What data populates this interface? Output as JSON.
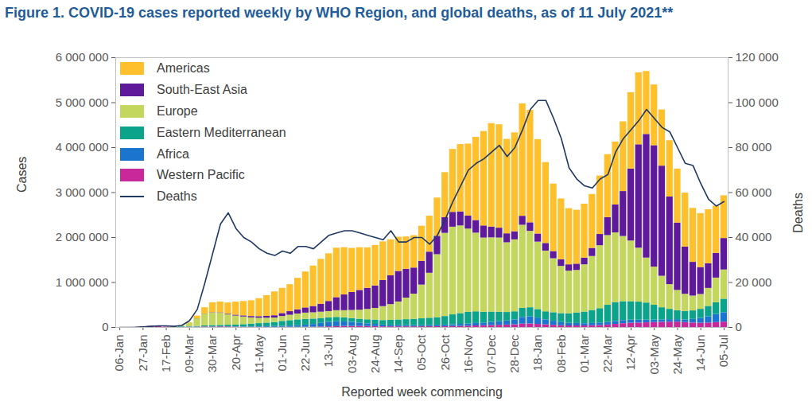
{
  "chart_data": {
    "type": "bar",
    "title": "Figure 1. COVID-19 cases reported weekly by WHO Region, and global deaths, as of 11 July 2021**",
    "xlabel": "Reported week commencing",
    "ylabel": "Cases",
    "y2label": "Deaths",
    "stacked": true,
    "grid": false,
    "legend": "top-left",
    "categories": [
      "06-Jan",
      null,
      null,
      "27-Jan",
      null,
      null,
      "17-Feb",
      null,
      null,
      "09-Mar",
      null,
      null,
      "30-Mar",
      null,
      null,
      "20-Apr",
      null,
      null,
      "11-May",
      null,
      null,
      "01-Jun",
      null,
      null,
      "22-Jun",
      null,
      null,
      "13-Jul",
      null,
      null,
      "03-Aug",
      null,
      null,
      "24-Aug",
      null,
      null,
      "14-Sep",
      null,
      null,
      "05-Oct",
      null,
      null,
      "26-Oct",
      null,
      null,
      "16-Nov",
      null,
      null,
      "07-Dec",
      null,
      null,
      "28-Dec",
      null,
      null,
      "18-Jan",
      null,
      null,
      "08-Feb",
      null,
      null,
      "01-Mar",
      null,
      null,
      "22-Mar",
      null,
      null,
      "12-Apr",
      null,
      null,
      "03-May",
      null,
      null,
      "24-May",
      null,
      null,
      "14-Jun",
      null,
      null,
      "05-Jul"
    ],
    "ylim": [
      0,
      6000000
    ],
    "yticks": [
      0,
      {
        "value": 1000000,
        "label": "1 000 000"
      },
      {
        "value": 2000000,
        "label": "2 000 000"
      },
      {
        "value": 3000000,
        "label": "3 000 000"
      },
      {
        "value": 4000000,
        "label": "4 000 000"
      },
      {
        "value": 5000000,
        "label": "5 000 000"
      },
      {
        "value": 6000000,
        "label": "6 000 000"
      }
    ],
    "y2lim": [
      0,
      120000
    ],
    "y2ticks": [
      0,
      {
        "value": 20000,
        "label": "20 000"
      },
      {
        "value": 40000,
        "label": "40 000"
      },
      {
        "value": 60000,
        "label": "60 000"
      },
      {
        "value": 80000,
        "label": "80 000"
      },
      {
        "value": 100000,
        "label": "100 000"
      },
      {
        "value": 120000,
        "label": "120 000"
      }
    ],
    "series": [
      {
        "name": "Americas",
        "type": "bar",
        "color": "#FFC02D",
        "values": [
          0,
          0,
          0,
          0,
          0,
          0,
          0,
          0,
          2000,
          15000,
          60000,
          140000,
          220000,
          240000,
          250000,
          290000,
          320000,
          350000,
          400000,
          460000,
          530000,
          560000,
          600000,
          700000,
          800000,
          900000,
          1000000,
          1060000,
          1100000,
          1050000,
          980000,
          950000,
          900000,
          900000,
          860000,
          800000,
          760000,
          720000,
          720000,
          780000,
          800000,
          850000,
          1000000,
          1400000,
          1500000,
          1600000,
          1850000,
          2100000,
          2300000,
          2300000,
          2100000,
          2200000,
          2500000,
          2500000,
          2100000,
          1800000,
          1500000,
          1350000,
          1250000,
          1200000,
          1200000,
          1200000,
          1300000,
          1400000,
          1400000,
          1550000,
          1700000,
          1600000,
          1400000,
          1350000,
          1250000,
          1250000,
          1200000,
          1200000,
          1200000,
          1200000,
          1200000,
          1050000,
          950000
        ]
      },
      {
        "name": "South-East Asia",
        "type": "bar",
        "color": "#5E1A9B",
        "values": [
          0,
          0,
          0,
          0,
          0,
          0,
          0,
          0,
          0,
          500,
          2000,
          3000,
          7000,
          10000,
          15000,
          20000,
          25000,
          30000,
          35000,
          40000,
          50000,
          65000,
          80000,
          95000,
          115000,
          140000,
          175000,
          225000,
          290000,
          350000,
          400000,
          440000,
          470000,
          500000,
          580000,
          640000,
          680000,
          640000,
          580000,
          530000,
          470000,
          410000,
          350000,
          330000,
          310000,
          290000,
          280000,
          270000,
          240000,
          220000,
          200000,
          180000,
          200000,
          190000,
          180000,
          170000,
          160000,
          150000,
          140000,
          140000,
          150000,
          180000,
          250000,
          400000,
          620000,
          1000000,
          1600000,
          2300000,
          2750000,
          2700000,
          2450000,
          1950000,
          1500000,
          1050000,
          750000,
          600000,
          550000,
          550000,
          700000
        ]
      },
      {
        "name": "Europe",
        "type": "bar",
        "color": "#C3D65E",
        "values": [
          0,
          0,
          0,
          0,
          0,
          0,
          0,
          10000,
          20000,
          75000,
          170000,
          260000,
          280000,
          270000,
          230000,
          200000,
          170000,
          140000,
          120000,
          110000,
          100000,
          110000,
          120000,
          130000,
          140000,
          140000,
          140000,
          140000,
          150000,
          160000,
          180000,
          200000,
          230000,
          260000,
          310000,
          350000,
          400000,
          480000,
          560000,
          750000,
          1000000,
          1400000,
          1850000,
          1950000,
          1950000,
          1850000,
          1750000,
          1650000,
          1650000,
          1650000,
          1550000,
          1600000,
          1850000,
          1700000,
          1500000,
          1350000,
          1200000,
          1050000,
          950000,
          950000,
          1050000,
          1200000,
          1400000,
          1550000,
          1550000,
          1450000,
          1350000,
          1200000,
          1000000,
          850000,
          700000,
          550000,
          450000,
          380000,
          330000,
          330000,
          400000,
          550000,
          650000
        ]
      },
      {
        "name": "Eastern Mediterranean",
        "type": "bar",
        "color": "#0BA48A",
        "values": [
          0,
          0,
          0,
          0,
          0,
          0,
          0,
          5000,
          12000,
          10000,
          15000,
          25000,
          30000,
          30000,
          35000,
          40000,
          50000,
          60000,
          70000,
          80000,
          90000,
          110000,
          120000,
          130000,
          130000,
          120000,
          110000,
          100000,
          95000,
          90000,
          85000,
          85000,
          90000,
          95000,
          100000,
          110000,
          120000,
          130000,
          140000,
          150000,
          160000,
          170000,
          190000,
          220000,
          240000,
          260000,
          260000,
          240000,
          230000,
          210000,
          190000,
          180000,
          200000,
          200000,
          190000,
          180000,
          190000,
          200000,
          210000,
          230000,
          260000,
          290000,
          320000,
          380000,
          420000,
          420000,
          410000,
          400000,
          380000,
          330000,
          270000,
          230000,
          200000,
          190000,
          190000,
          200000,
          230000,
          260000,
          300000
        ]
      },
      {
        "name": "Africa",
        "type": "bar",
        "color": "#1B75CE",
        "values": [
          0,
          0,
          0,
          0,
          0,
          0,
          0,
          0,
          0,
          100,
          1000,
          2000,
          4000,
          5000,
          6000,
          7000,
          8000,
          10000,
          12000,
          15000,
          18000,
          22000,
          28000,
          35000,
          45000,
          60000,
          80000,
          100000,
          110000,
          100000,
          90000,
          75000,
          60000,
          50000,
          40000,
          35000,
          33000,
          30000,
          28000,
          28000,
          30000,
          32000,
          35000,
          40000,
          45000,
          50000,
          55000,
          60000,
          70000,
          80000,
          90000,
          110000,
          150000,
          160000,
          140000,
          110000,
          90000,
          70000,
          60000,
          55000,
          50000,
          50000,
          55000,
          60000,
          65000,
          70000,
          70000,
          65000,
          60000,
          55000,
          55000,
          55000,
          55000,
          60000,
          80000,
          110000,
          140000,
          180000,
          210000
        ]
      },
      {
        "name": "Western Pacific",
        "type": "bar",
        "color": "#C8289A",
        "values": [
          0,
          50,
          2000,
          12000,
          25000,
          30000,
          10000,
          5000,
          3000,
          5000,
          7000,
          10000,
          10000,
          12000,
          10000,
          8000,
          6000,
          5000,
          5000,
          4000,
          4000,
          4000,
          5000,
          5000,
          6000,
          8000,
          12000,
          15000,
          20000,
          25000,
          25000,
          25000,
          22000,
          20000,
          15000,
          15000,
          15000,
          15000,
          15000,
          16000,
          17000,
          18000,
          20000,
          22000,
          25000,
          30000,
          35000,
          40000,
          45000,
          50000,
          55000,
          60000,
          75000,
          80000,
          70000,
          60000,
          50000,
          40000,
          35000,
          35000,
          35000,
          40000,
          45000,
          55000,
          70000,
          85000,
          95000,
          100000,
          105000,
          110000,
          115000,
          120000,
          120000,
          110000,
          100000,
          95000,
          100000,
          110000,
          120000
        ]
      },
      {
        "name": "Deaths",
        "type": "line",
        "axis": "y2",
        "color": "#1F3864",
        "values": [
          0,
          0,
          50,
          250,
          500,
          700,
          700,
          500,
          900,
          3000,
          8000,
          20000,
          33000,
          46000,
          51000,
          44000,
          40000,
          38000,
          35000,
          33000,
          32000,
          34000,
          33000,
          36000,
          36000,
          35000,
          38000,
          41000,
          42000,
          43000,
          43000,
          42000,
          41000,
          40000,
          39000,
          43000,
          38000,
          38000,
          40000,
          40000,
          37000,
          41000,
          48000,
          56000,
          63000,
          70000,
          73000,
          75000,
          78000,
          81000,
          76000,
          80000,
          88000,
          97000,
          101000,
          101000,
          93000,
          84000,
          71000,
          66000,
          63000,
          62000,
          66000,
          68000,
          78000,
          84000,
          88000,
          92000,
          97000,
          93000,
          89000,
          87000,
          80000,
          73000,
          72000,
          64000,
          57000,
          54000,
          56000
        ]
      }
    ]
  }
}
